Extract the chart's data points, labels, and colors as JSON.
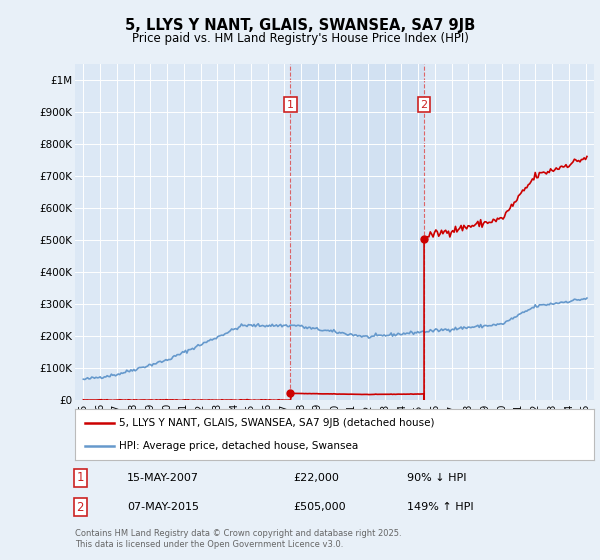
{
  "title": "5, LLYS Y NANT, GLAIS, SWANSEA, SA7 9JB",
  "subtitle": "Price paid vs. HM Land Registry's House Price Index (HPI)",
  "bg_color": "#e8f0f8",
  "plot_bg_color": "#dce8f5",
  "legend_label_red": "5, LLYS Y NANT, GLAIS, SWANSEA, SA7 9JB (detached house)",
  "legend_label_blue": "HPI: Average price, detached house, Swansea",
  "transaction1_date": "15-MAY-2007",
  "transaction1_price": 22000,
  "transaction1_pct": "90% ↓ HPI",
  "transaction2_date": "07-MAY-2015",
  "transaction2_price": 505000,
  "transaction2_pct": "149% ↑ HPI",
  "footer": "Contains HM Land Registry data © Crown copyright and database right 2025.\nThis data is licensed under the Open Government Licence v3.0.",
  "vline1_year": 2007.37,
  "vline2_year": 2015.35,
  "ylim_max": 1050000,
  "hpi_color": "#6699cc",
  "price_color": "#cc0000",
  "shade_color": "#ccddf0",
  "shade_alpha": 0.6
}
